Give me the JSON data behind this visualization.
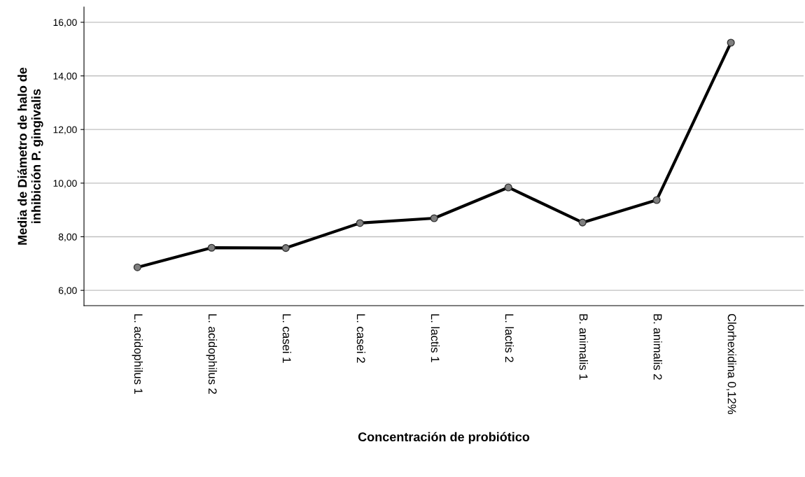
{
  "chart_data": {
    "type": "line",
    "xlabel": "Concentración de probiótico",
    "ylabel": "Media de Diámetro de halo de\ninhibición P. gingivalis",
    "categories": [
      "L. acidophilus 1",
      "L. acidophilus 2",
      "L. casei 1",
      "L. casei 2",
      "L. lactis 1",
      "L. lactis 2",
      "B. animalis 1",
      "B. animalis 2",
      "Clorhexidina 0,12%"
    ],
    "series": [
      {
        "color": "#000000",
        "values": [
          6.86,
          7.59,
          7.58,
          8.51,
          8.69,
          9.84,
          8.53,
          9.37,
          15.24
        ]
      }
    ],
    "ylim": [
      5.43,
      16.57
    ],
    "yticks": [
      {
        "value": 6,
        "label": "6,00"
      },
      {
        "value": 8,
        "label": "8,00"
      },
      {
        "value": 10,
        "label": "10,00"
      },
      {
        "value": 12,
        "label": "12,00"
      },
      {
        "value": 14,
        "label": "14,00"
      },
      {
        "value": 16,
        "label": "16,00"
      }
    ],
    "grid": "y",
    "marker": "circle",
    "line_style": "solid"
  }
}
